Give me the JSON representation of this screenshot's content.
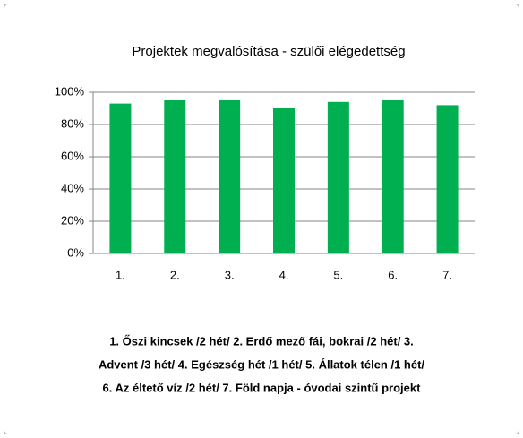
{
  "chart_data": {
    "type": "bar",
    "title": "Projektek megvalósítása - szülői elégedettség",
    "categories": [
      "1.",
      "2.",
      "3.",
      "4.",
      "5.",
      "6.",
      "7."
    ],
    "values": [
      93,
      95,
      95,
      90,
      94,
      95,
      92
    ],
    "color": "#00b050",
    "ylim": [
      0,
      100
    ],
    "yticks": [
      {
        "value": 0,
        "label": "0%"
      },
      {
        "value": 20,
        "label": "20%"
      },
      {
        "value": 40,
        "label": "40%"
      },
      {
        "value": 60,
        "label": "60%"
      },
      {
        "value": 80,
        "label": "80%"
      },
      {
        "value": 100,
        "label": "100%"
      }
    ],
    "grid": true,
    "caption": [
      "1. Őszi kincsek /2 hét/  2. Erdő mező fái, bokrai /2 hét/  3.",
      "Advent /3 hét/    4. Egészség hét /1 hét/    5. Állatok télen /1 hét/",
      "6. Az éltető víz /2 hét/  7. Föld napja - óvodai szintű projekt"
    ]
  }
}
